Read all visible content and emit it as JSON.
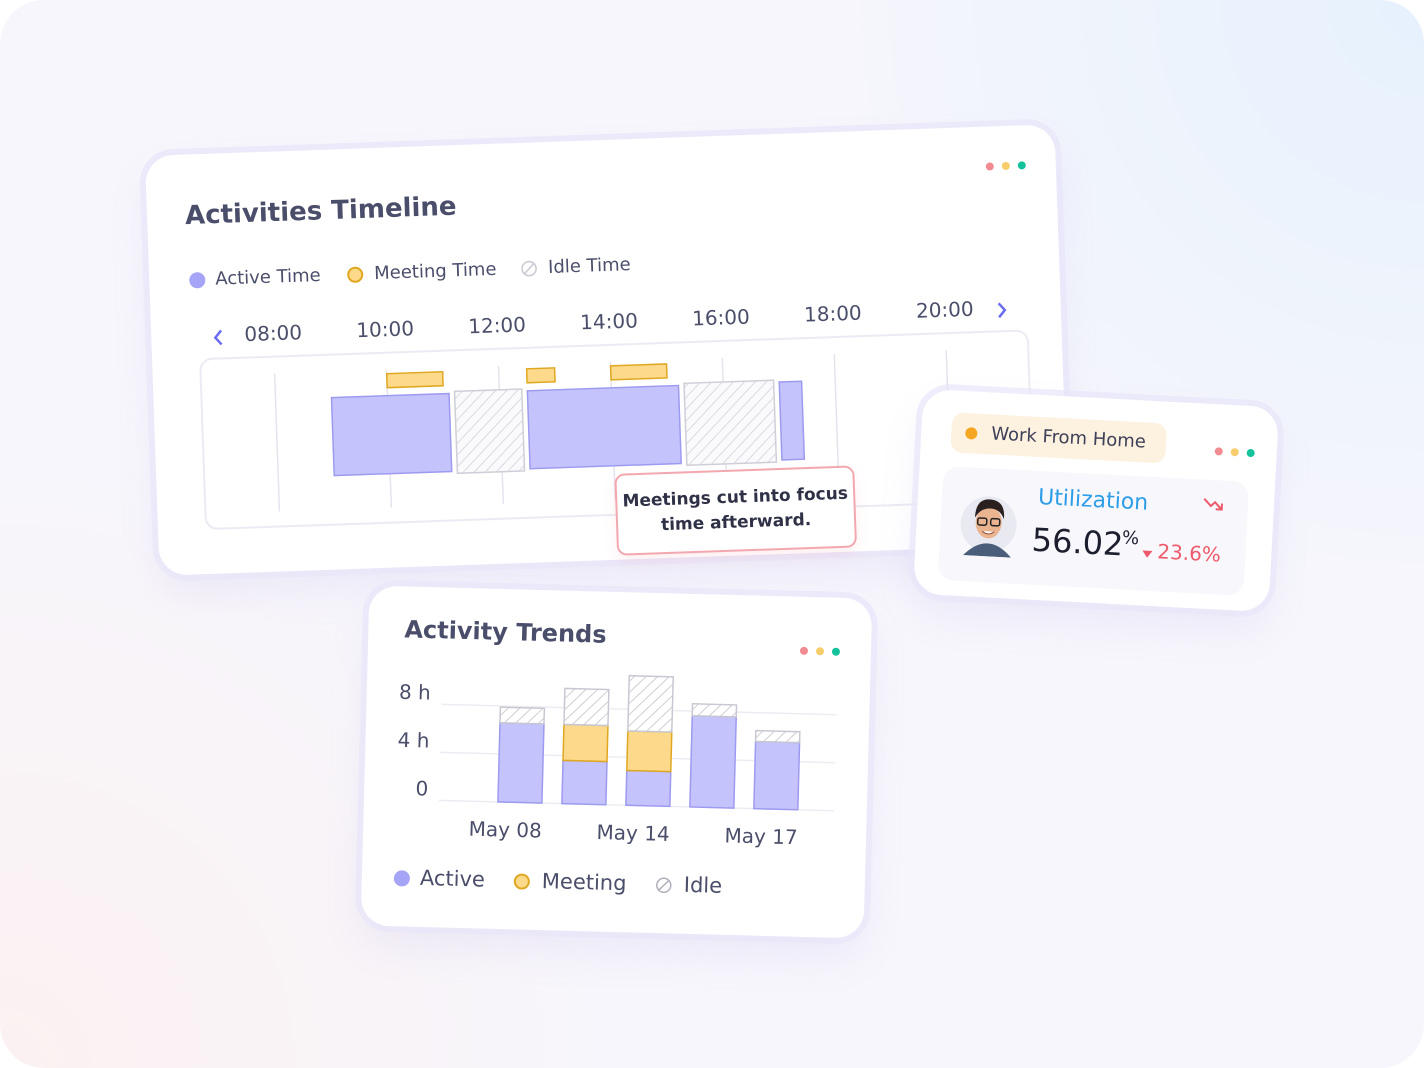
{
  "timeline": {
    "title": "Activities Timeline",
    "legend": [
      "Active Time",
      "Meeting Time",
      "Idle Time"
    ],
    "ticks": [
      {
        "value": 8,
        "label": "08:00"
      },
      {
        "value": 10,
        "label": "10:00"
      },
      {
        "value": 12,
        "label": "12:00"
      },
      {
        "value": 14,
        "label": "14:00"
      },
      {
        "value": 16,
        "label": "16:00"
      },
      {
        "value": 18,
        "label": "18:00"
      },
      {
        "value": 20,
        "label": "20:00"
      }
    ],
    "active": [
      [
        9.0,
        11.1
      ],
      [
        12.5,
        15.2
      ],
      [
        17.0,
        17.4
      ]
    ],
    "meeting": [
      [
        10.0,
        11.0
      ],
      [
        12.5,
        13.0
      ],
      [
        14.0,
        15.0
      ]
    ],
    "idle": [
      [
        11.2,
        12.4
      ],
      [
        15.3,
        16.9
      ]
    ],
    "note": "Meetings cut into focus time afterward."
  },
  "status_card": {
    "label": "Work From Home",
    "metric": "Utilization",
    "value": "56.02",
    "unit": "%",
    "change": "23.6%"
  },
  "chart_data": {
    "type": "stacked_bar",
    "title": "Activity Trends",
    "categories": [
      "May 08",
      null,
      "May 14",
      null,
      "May 17"
    ],
    "series": [
      {
        "name": "Active",
        "color": "#c5c3fb",
        "values": [
          6.6,
          3.6,
          2.9,
          7.6,
          5.6
        ]
      },
      {
        "name": "Meeting",
        "color": "#fcd98b",
        "values": [
          0,
          3.0,
          3.3,
          0,
          0
        ]
      },
      {
        "name": "Idle",
        "color": "#bdbdc8",
        "hatched": true,
        "values": [
          1.3,
          3.0,
          4.6,
          1.0,
          0.9
        ]
      }
    ],
    "ylim": [
      0,
      11
    ],
    "yticks": [
      0,
      {
        "value": 4,
        "label": "4 h"
      },
      {
        "value": 8,
        "label": "8 h"
      }
    ],
    "grid": true
  }
}
